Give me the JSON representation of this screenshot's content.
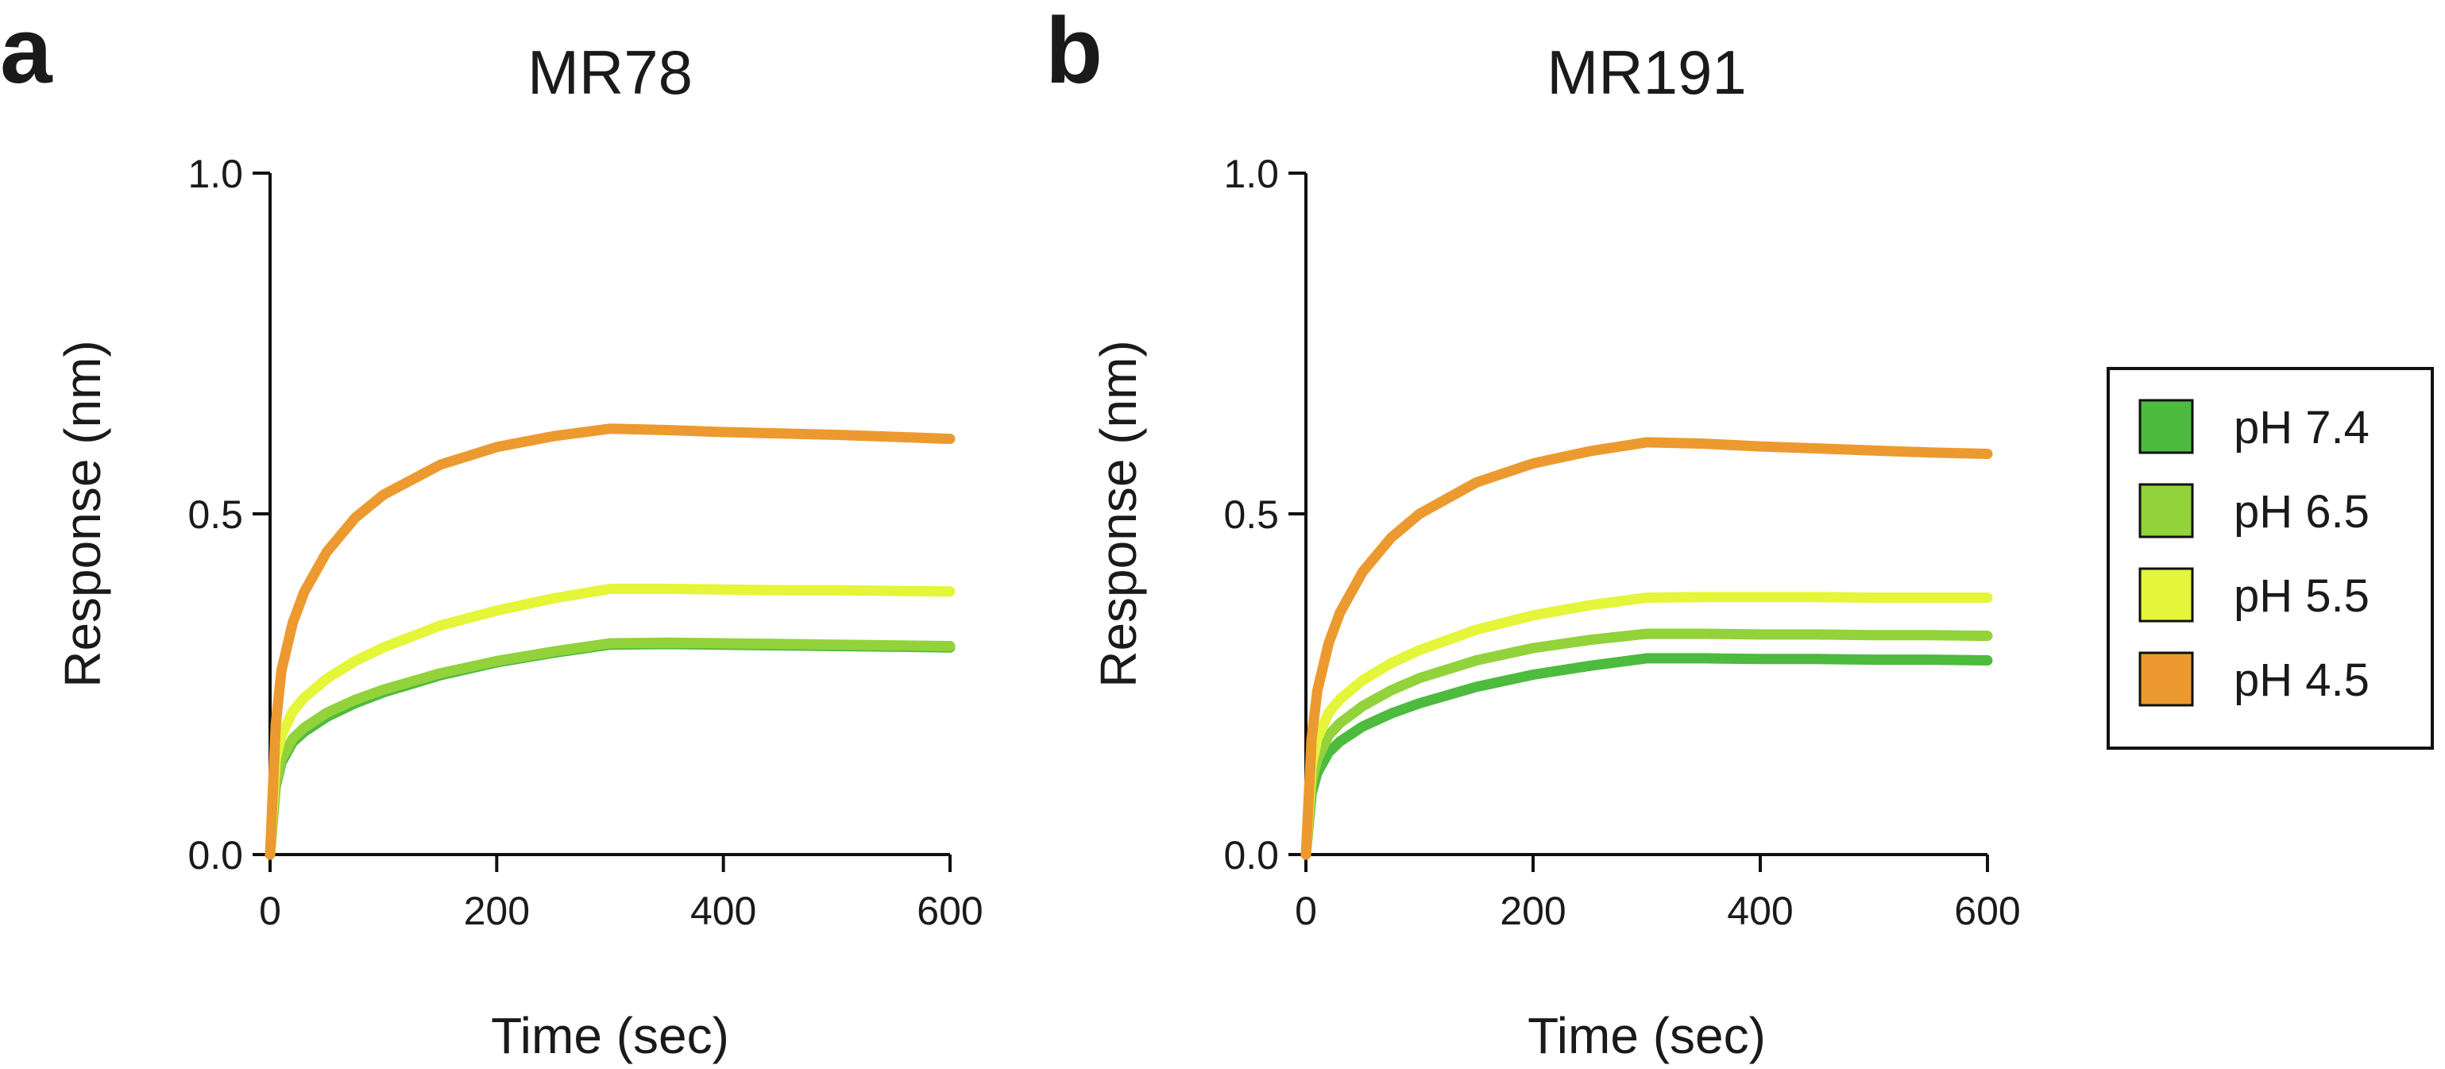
{
  "chart_data": [
    {
      "type": "line",
      "panel_label": "a",
      "title": "MR78",
      "xlabel": "Time (sec)",
      "ylabel": "Response (nm)",
      "xlim": [
        0,
        600
      ],
      "ylim": [
        0,
        1.0
      ],
      "xticks": [
        0,
        200,
        400,
        600
      ],
      "xtick_labels": [
        "0",
        "200",
        "400",
        "600"
      ],
      "yticks": [
        0,
        0.5,
        1.0
      ],
      "ytick_labels": [
        "0.0",
        "0.5",
        "1.0"
      ],
      "grid": false,
      "x": [
        0,
        5,
        10,
        20,
        30,
        50,
        75,
        100,
        150,
        200,
        250,
        300,
        350,
        400,
        450,
        500,
        550,
        600
      ],
      "series": [
        {
          "name": "pH 7.4",
          "color": "#4dbb3e",
          "values": [
            0.0,
            0.1,
            0.135,
            0.165,
            0.18,
            0.202,
            0.222,
            0.238,
            0.263,
            0.282,
            0.296,
            0.308,
            0.309,
            0.308,
            0.307,
            0.306,
            0.305,
            0.304
          ]
        },
        {
          "name": "pH 6.5",
          "color": "#92d23a",
          "values": [
            0.0,
            0.105,
            0.14,
            0.17,
            0.186,
            0.208,
            0.227,
            0.242,
            0.266,
            0.284,
            0.298,
            0.31,
            0.311,
            0.31,
            0.309,
            0.308,
            0.307,
            0.306
          ]
        },
        {
          "name": "pH 5.5",
          "color": "#e4f53a",
          "values": [
            0.0,
            0.14,
            0.175,
            0.21,
            0.23,
            0.258,
            0.284,
            0.304,
            0.336,
            0.358,
            0.376,
            0.39,
            0.39,
            0.389,
            0.388,
            0.388,
            0.387,
            0.386
          ]
        },
        {
          "name": "pH 4.5",
          "color": "#ec9a2f",
          "values": [
            0.0,
            0.19,
            0.27,
            0.34,
            0.385,
            0.444,
            0.494,
            0.528,
            0.572,
            0.598,
            0.614,
            0.625,
            0.623,
            0.62,
            0.618,
            0.616,
            0.613,
            0.61
          ]
        }
      ]
    },
    {
      "type": "line",
      "panel_label": "b",
      "title": "MR191",
      "xlabel": "Time (sec)",
      "ylabel": "Response (nm)",
      "xlim": [
        0,
        600
      ],
      "ylim": [
        0,
        1.0
      ],
      "xticks": [
        0,
        200,
        400,
        600
      ],
      "xtick_labels": [
        "0",
        "200",
        "400",
        "600"
      ],
      "yticks": [
        0,
        0.5,
        1.0
      ],
      "ytick_labels": [
        "0.0",
        "0.5",
        "1.0"
      ],
      "grid": false,
      "x": [
        0,
        5,
        10,
        20,
        30,
        50,
        75,
        100,
        150,
        200,
        250,
        300,
        350,
        400,
        450,
        500,
        550,
        600
      ],
      "series": [
        {
          "name": "pH 7.4",
          "color": "#4dbb3e",
          "values": [
            0.0,
            0.09,
            0.12,
            0.15,
            0.166,
            0.188,
            0.207,
            0.222,
            0.246,
            0.264,
            0.277,
            0.288,
            0.288,
            0.287,
            0.287,
            0.286,
            0.286,
            0.285
          ]
        },
        {
          "name": "pH 6.5",
          "color": "#92d23a",
          "values": [
            0.0,
            0.105,
            0.14,
            0.175,
            0.193,
            0.218,
            0.241,
            0.259,
            0.285,
            0.303,
            0.315,
            0.324,
            0.324,
            0.323,
            0.323,
            0.322,
            0.322,
            0.321
          ]
        },
        {
          "name": "pH 5.5",
          "color": "#e4f53a",
          "values": [
            0.0,
            0.13,
            0.17,
            0.208,
            0.228,
            0.256,
            0.281,
            0.3,
            0.33,
            0.351,
            0.366,
            0.377,
            0.378,
            0.378,
            0.378,
            0.377,
            0.377,
            0.377
          ]
        },
        {
          "name": "pH 4.5",
          "color": "#ec9a2f",
          "values": [
            0.0,
            0.17,
            0.24,
            0.31,
            0.355,
            0.415,
            0.465,
            0.5,
            0.546,
            0.574,
            0.592,
            0.605,
            0.603,
            0.599,
            0.596,
            0.593,
            0.59,
            0.588
          ]
        }
      ]
    }
  ],
  "legend": {
    "placement": "right",
    "entries": [
      {
        "label": "pH 7.4",
        "color": "#4dbb3e"
      },
      {
        "label": "pH 6.5",
        "color": "#92d23a"
      },
      {
        "label": "pH 5.5",
        "color": "#e4f53a"
      },
      {
        "label": "pH 4.5",
        "color": "#ec9a2f"
      }
    ]
  }
}
